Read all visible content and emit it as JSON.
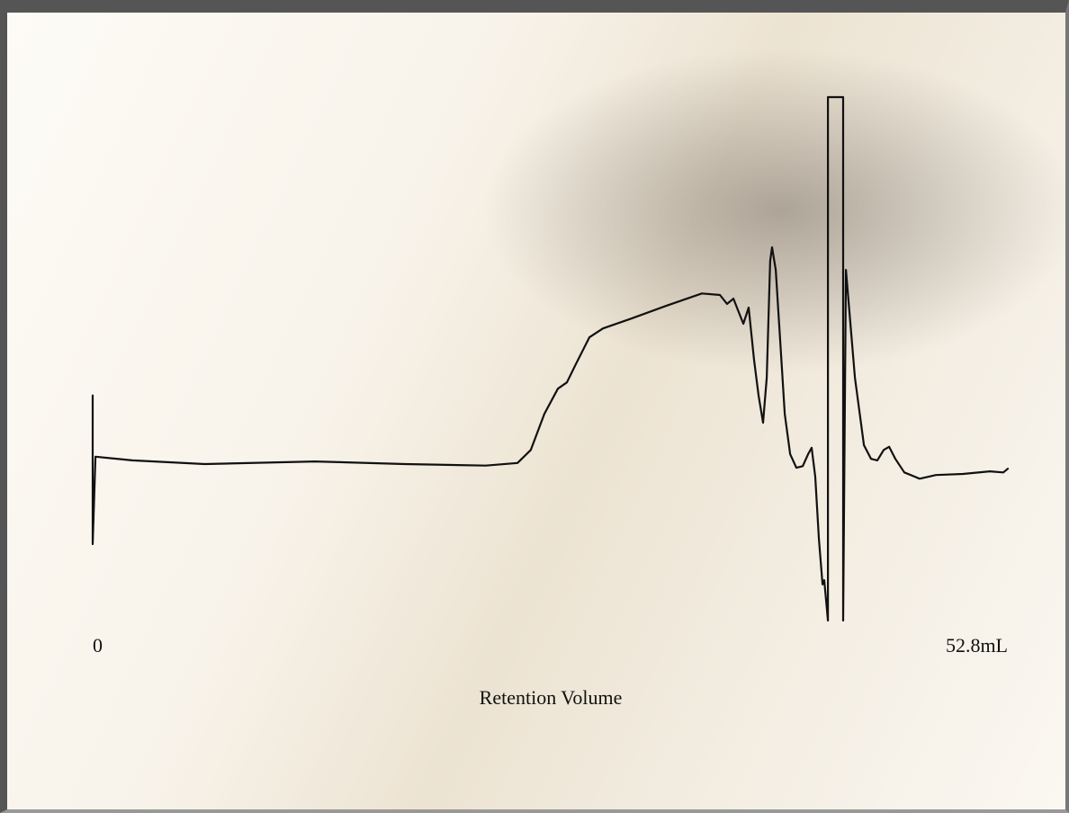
{
  "chart_data": {
    "type": "line",
    "x_label": "Retention Volume",
    "xlim": [
      0,
      52.8
    ],
    "xticks": [
      0,
      {
        "value": 52.8,
        "label": "52.8mL"
      }
    ],
    "ylim": [
      0,
      100
    ],
    "series": [
      {
        "color": "#111111",
        "x": [
          0,
          0,
          0.16,
          2.28,
          6.46,
          12.82,
          18.01,
          22.69,
          24.51,
          25.28,
          26.06,
          26.84,
          27.36,
          27.88,
          28.66,
          29.44,
          30.99,
          33.07,
          35.15,
          36.19,
          36.6,
          36.97,
          37.23,
          37.54,
          37.85,
          38.16,
          38.42,
          38.68,
          38.89,
          39.09,
          39.2,
          39.41,
          39.67,
          39.93,
          40.24,
          40.6,
          40.97,
          41.28,
          41.48,
          41.69,
          41.9,
          42.11,
          42.21,
          42.42,
          42.42,
          43.3,
          43.3,
          43.46,
          43.98,
          44.5,
          44.91,
          45.27,
          45.64,
          45.95,
          46.31,
          46.83,
          47.71,
          48.65,
          50.21,
          51.76,
          52.54,
          52.8
        ],
        "values": [
          43.0,
          14.6,
          31.3,
          30.6,
          29.9,
          30.4,
          29.9,
          29.6,
          30.1,
          32.6,
          39.5,
          44.3,
          45.5,
          49.0,
          54.1,
          55.8,
          57.6,
          60.1,
          62.5,
          62.2,
          60.5,
          61.5,
          59.3,
          56.7,
          59.8,
          49.8,
          43.0,
          37.8,
          46.4,
          68.7,
          71.3,
          67.0,
          53.3,
          39.5,
          31.8,
          29.2,
          29.5,
          31.8,
          33.0,
          27.5,
          15.5,
          6.9,
          7.7,
          0,
          100,
          100,
          0,
          67.0,
          46.4,
          33.5,
          30.9,
          30.6,
          32.6,
          33.2,
          30.9,
          28.3,
          27.1,
          27.8,
          28.0,
          28.5,
          28.3,
          29.0
        ]
      }
    ]
  }
}
